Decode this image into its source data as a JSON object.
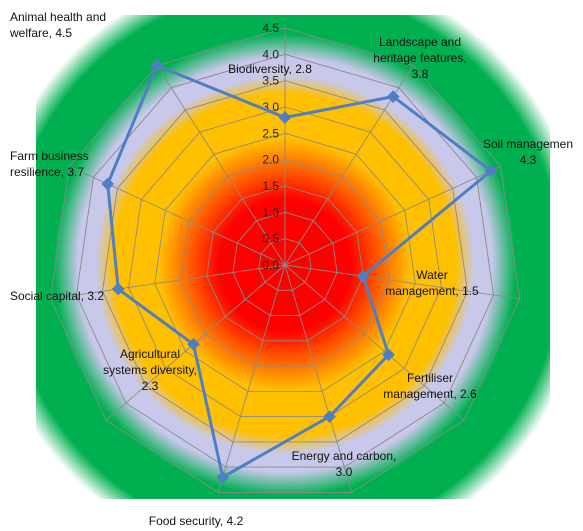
{
  "chart_data": {
    "type": "radar",
    "title": "",
    "categories": [
      "Biodiversity",
      "Landscape and heritage features",
      "Soil management",
      "Water management",
      "Fertiliser management",
      "Energy and carbon",
      "Food security",
      "Agricultural systems diversity",
      "Social capital",
      "Farm business resilience",
      "Animal health and welfare"
    ],
    "category_labels": [
      [
        "Biodiversity, 2.8"
      ],
      [
        "Landscape and",
        "heritage features,",
        "3.8"
      ],
      [
        "Soil managemen",
        "4.3"
      ],
      [
        "Water",
        "management, 1.5"
      ],
      [
        "Fertiliser",
        "management, 2.6"
      ],
      [
        "Energy and carbon,",
        "3.0"
      ],
      [
        "Food security, 4.2"
      ],
      [
        "Agricultural",
        "systems diversity,",
        "2.3"
      ],
      [
        "Social capital, 3.2"
      ],
      [
        "Farm business",
        "resilience, 3.7"
      ],
      [
        "Animal health and",
        "welfare, 4.5"
      ]
    ],
    "series": [
      {
        "values": [
          2.8,
          3.8,
          4.3,
          1.5,
          2.6,
          3.0,
          4.2,
          2.3,
          3.2,
          3.7,
          4.5
        ]
      }
    ],
    "r_ticks": [
      "0.0",
      "0.5",
      "1.0",
      "1.5",
      "2.0",
      "2.5",
      "3.0",
      "3.5",
      "4.0",
      "4.5"
    ],
    "r_range": [
      0,
      4.5
    ],
    "grid": true,
    "legend": "none",
    "colors": {
      "series": "#4f7fc3",
      "grid": "#8a8a8a",
      "background_outer": "#ffffff",
      "background_green": "#00b050",
      "background_lavender": "#c8c8ea",
      "background_yellow": "#ffc000",
      "background_red": "#ff0000"
    }
  }
}
